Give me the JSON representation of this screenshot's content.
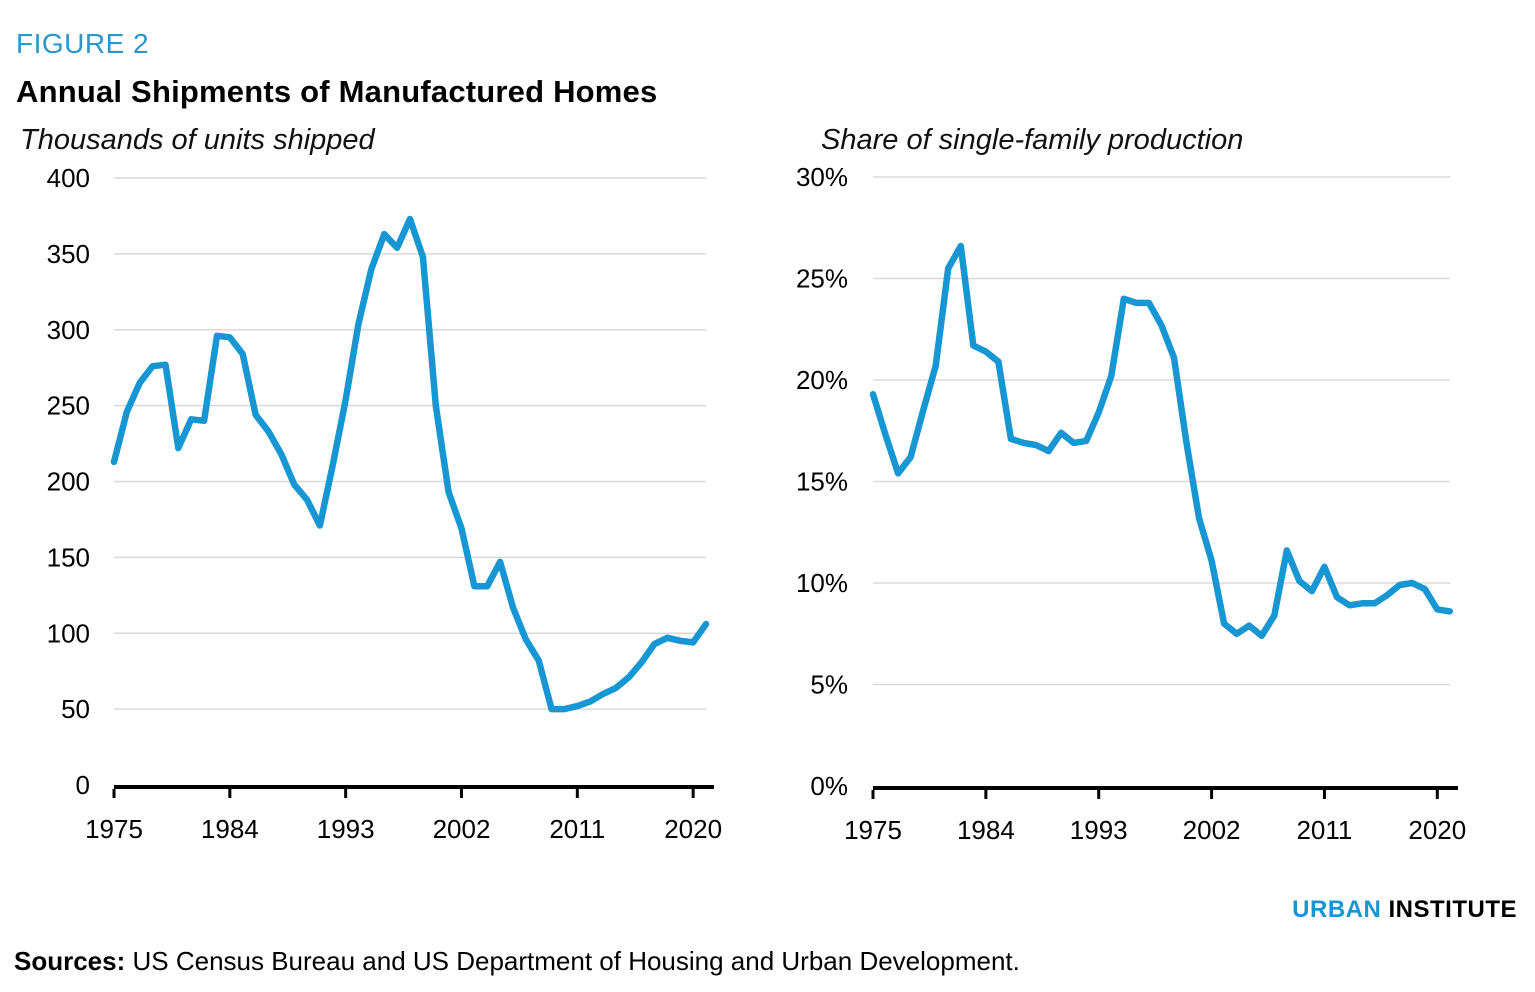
{
  "header": {
    "figure_label": "FIGURE 2",
    "title": "Annual Shipments of Manufactured Homes"
  },
  "colors": {
    "accent_blue": "#1696d2",
    "gridline_gray": "#d9d9d9",
    "axis_black": "#000000"
  },
  "chart_data": [
    {
      "type": "line",
      "title": "Thousands of units shipped",
      "ylabel": "Thousands of units shipped",
      "xlabel": "",
      "ylim": [
        0,
        400
      ],
      "grid": true,
      "legend_position": "none",
      "line_color": "#1696d2",
      "yticks": [
        0,
        50,
        100,
        150,
        200,
        250,
        300,
        350,
        400
      ],
      "ytick_labels": [
        "0",
        "50",
        "100",
        "150",
        "200",
        "250",
        "300",
        "350",
        "400"
      ],
      "xticks": [
        1975,
        1984,
        1993,
        2002,
        2011,
        2020
      ],
      "xtick_labels": [
        "1975",
        "1984",
        "1993",
        "2002",
        "2011",
        "2020"
      ],
      "x": [
        1975,
        1976,
        1977,
        1978,
        1979,
        1980,
        1981,
        1982,
        1983,
        1984,
        1985,
        1986,
        1987,
        1988,
        1989,
        1990,
        1991,
        1992,
        1993,
        1994,
        1995,
        1996,
        1997,
        1998,
        1999,
        2000,
        2001,
        2002,
        2003,
        2004,
        2005,
        2006,
        2007,
        2008,
        2009,
        2010,
        2011,
        2012,
        2013,
        2014,
        2015,
        2016,
        2017,
        2018,
        2019,
        2020,
        2021
      ],
      "values": [
        213,
        246,
        265,
        276,
        277,
        222,
        241,
        240,
        296,
        295,
        284,
        244,
        233,
        218,
        198,
        188,
        171,
        211,
        254,
        304,
        340,
        363,
        354,
        373,
        348,
        250,
        193,
        169,
        131,
        131,
        147,
        117,
        96,
        82,
        50,
        50,
        52,
        55,
        60,
        64,
        71,
        81,
        93,
        97,
        95,
        94,
        106
      ]
    },
    {
      "type": "line",
      "title": "Share of single-family production",
      "ylabel": "Share of single-family production",
      "xlabel": "",
      "ylim": [
        0,
        30
      ],
      "grid": true,
      "legend_position": "none",
      "line_color": "#1696d2",
      "yticks": [
        0,
        5,
        10,
        15,
        20,
        25,
        30
      ],
      "ytick_labels": [
        "0%",
        "5%",
        "10%",
        "15%",
        "20%",
        "25%",
        "30%"
      ],
      "xticks": [
        1975,
        1984,
        1993,
        2002,
        2011,
        2020
      ],
      "xtick_labels": [
        "1975",
        "1984",
        "1993",
        "2002",
        "2011",
        "2020"
      ],
      "x": [
        1975,
        1976,
        1977,
        1978,
        1979,
        1980,
        1981,
        1982,
        1983,
        1984,
        1985,
        1986,
        1987,
        1988,
        1989,
        1990,
        1991,
        1992,
        1993,
        1994,
        1995,
        1996,
        1997,
        1998,
        1999,
        2000,
        2001,
        2002,
        2003,
        2004,
        2005,
        2006,
        2007,
        2008,
        2009,
        2010,
        2011,
        2012,
        2013,
        2014,
        2015,
        2016,
        2017,
        2018,
        2019,
        2020,
        2021
      ],
      "values": [
        19.3,
        17.3,
        15.4,
        16.2,
        18.5,
        20.7,
        25.5,
        26.6,
        21.7,
        21.4,
        20.9,
        17.1,
        16.9,
        16.8,
        16.5,
        17.4,
        16.9,
        17.0,
        18.4,
        20.2,
        24.0,
        23.8,
        23.8,
        22.7,
        21.1,
        16.9,
        13.2,
        11.1,
        8.0,
        7.5,
        7.9,
        7.4,
        8.4,
        11.6,
        10.1,
        9.6,
        10.8,
        9.3,
        8.9,
        9.0,
        9.0,
        9.4,
        9.9,
        10.0,
        9.7,
        8.7,
        8.6
      ]
    }
  ],
  "footer": {
    "logo_urban": "URBAN",
    "logo_institute": "INSTITUTE",
    "sources_label": "Sources:",
    "sources_text": " US Census Bureau and US Department of Housing and Urban Development."
  }
}
